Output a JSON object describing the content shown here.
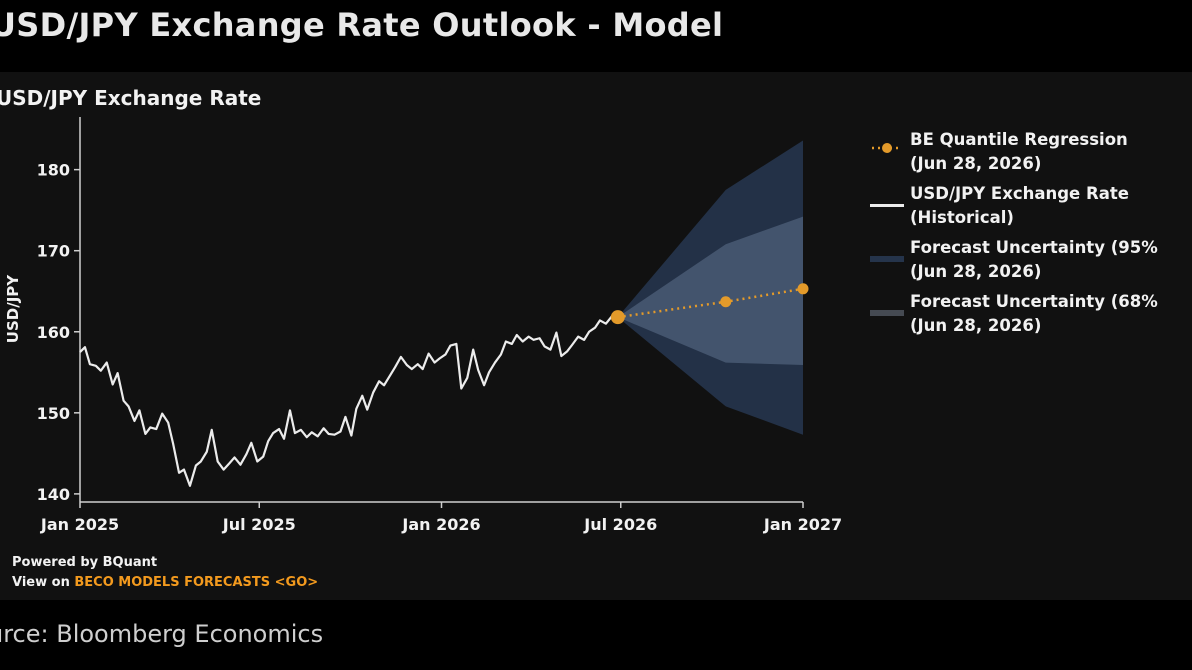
{
  "header": {
    "title": "USD/JPY Exchange Rate Outlook - Model"
  },
  "chart_data": {
    "type": "line",
    "title": "USD/JPY Exchange Rate",
    "ylabel": "USD/JPY",
    "xlabel": "",
    "ylim": [
      139,
      186
    ],
    "xlim": [
      "2025-01-01",
      "2027-01-01"
    ],
    "x_ticks": [
      "Jan 2025",
      "Jul 2025",
      "Jan 2026",
      "Jul 2026",
      "Jan 2027"
    ],
    "y_ticks": [
      140,
      150,
      160,
      170,
      180
    ],
    "series": [
      {
        "name": "USD/JPY Exchange Rate (Historical)",
        "color": "#ececec",
        "points": [
          [
            "2025-01-01",
            157.5
          ],
          [
            "2025-01-06",
            158.1
          ],
          [
            "2025-01-11",
            156.0
          ],
          [
            "2025-01-17",
            155.8
          ],
          [
            "2025-01-22",
            155.2
          ],
          [
            "2025-01-28",
            156.2
          ],
          [
            "2025-02-03",
            153.5
          ],
          [
            "2025-02-08",
            154.9
          ],
          [
            "2025-02-14",
            151.5
          ],
          [
            "2025-02-19",
            150.8
          ],
          [
            "2025-02-25",
            149.0
          ],
          [
            "2025-03-02",
            150.3
          ],
          [
            "2025-03-08",
            147.4
          ],
          [
            "2025-03-13",
            148.2
          ],
          [
            "2025-03-19",
            148.0
          ],
          [
            "2025-03-25",
            149.9
          ],
          [
            "2025-03-31",
            148.8
          ],
          [
            "2025-04-05",
            146.2
          ],
          [
            "2025-04-11",
            142.6
          ],
          [
            "2025-04-16",
            143.0
          ],
          [
            "2025-04-22",
            141.0
          ],
          [
            "2025-04-28",
            143.5
          ],
          [
            "2025-05-03",
            144.0
          ],
          [
            "2025-05-09",
            145.2
          ],
          [
            "2025-05-14",
            147.9
          ],
          [
            "2025-05-20",
            144.0
          ],
          [
            "2025-05-26",
            143.0
          ],
          [
            "2025-06-01",
            143.8
          ],
          [
            "2025-06-06",
            144.5
          ],
          [
            "2025-06-12",
            143.6
          ],
          [
            "2025-06-18",
            144.9
          ],
          [
            "2025-06-23",
            146.3
          ],
          [
            "2025-06-29",
            144.0
          ],
          [
            "2025-07-05",
            144.6
          ],
          [
            "2025-07-10",
            146.5
          ],
          [
            "2025-07-15",
            147.5
          ],
          [
            "2025-07-21",
            148.0
          ],
          [
            "2025-07-26",
            146.8
          ],
          [
            "2025-08-01",
            150.3
          ],
          [
            "2025-08-06",
            147.5
          ],
          [
            "2025-08-12",
            147.9
          ],
          [
            "2025-08-18",
            147.0
          ],
          [
            "2025-08-23",
            147.6
          ],
          [
            "2025-08-29",
            147.1
          ],
          [
            "2025-09-04",
            148.1
          ],
          [
            "2025-09-09",
            147.4
          ],
          [
            "2025-09-15",
            147.3
          ],
          [
            "2025-09-21",
            147.7
          ],
          [
            "2025-09-26",
            149.5
          ],
          [
            "2025-10-02",
            147.2
          ],
          [
            "2025-10-07",
            150.5
          ],
          [
            "2025-10-13",
            152.1
          ],
          [
            "2025-10-18",
            150.4
          ],
          [
            "2025-10-24",
            152.5
          ],
          [
            "2025-10-30",
            153.9
          ],
          [
            "2025-11-04",
            153.4
          ],
          [
            "2025-11-10",
            154.6
          ],
          [
            "2025-11-15",
            155.6
          ],
          [
            "2025-11-21",
            156.9
          ],
          [
            "2025-11-27",
            155.9
          ],
          [
            "2025-12-02",
            155.4
          ],
          [
            "2025-12-08",
            156.0
          ],
          [
            "2025-12-13",
            155.4
          ],
          [
            "2025-12-19",
            157.3
          ],
          [
            "2025-12-25",
            156.2
          ],
          [
            "2025-12-30",
            156.7
          ],
          [
            "2026-01-05",
            157.2
          ],
          [
            "2026-01-10",
            158.3
          ],
          [
            "2026-01-16",
            158.5
          ],
          [
            "2026-01-21",
            153.0
          ],
          [
            "2026-01-27",
            154.3
          ],
          [
            "2026-02-02",
            157.8
          ],
          [
            "2026-02-07",
            155.3
          ],
          [
            "2026-02-13",
            153.4
          ],
          [
            "2026-02-18",
            155.0
          ],
          [
            "2026-02-24",
            156.2
          ],
          [
            "2026-03-02",
            157.2
          ],
          [
            "2026-03-07",
            158.8
          ],
          [
            "2026-03-13",
            158.5
          ],
          [
            "2026-03-18",
            159.6
          ],
          [
            "2026-03-24",
            158.8
          ],
          [
            "2026-03-30",
            159.4
          ],
          [
            "2026-04-04",
            159.0
          ],
          [
            "2026-04-10",
            159.2
          ],
          [
            "2026-04-15",
            158.2
          ],
          [
            "2026-04-21",
            157.8
          ],
          [
            "2026-04-27",
            159.9
          ],
          [
            "2026-05-02",
            157.0
          ],
          [
            "2026-05-08",
            157.6
          ],
          [
            "2026-05-13",
            158.4
          ],
          [
            "2026-05-19",
            159.4
          ],
          [
            "2026-05-25",
            159.0
          ],
          [
            "2026-05-30",
            160.0
          ],
          [
            "2026-06-05",
            160.5
          ],
          [
            "2026-06-10",
            161.4
          ],
          [
            "2026-06-16",
            161.0
          ],
          [
            "2026-06-22",
            161.9
          ],
          [
            "2026-06-28",
            161.8
          ]
        ]
      },
      {
        "name": "BE Quantile Regression (Jun 28, 2026)",
        "color": "#e39a2a",
        "points": [
          [
            "2026-06-28",
            161.8
          ],
          [
            "2026-10-15",
            163.7
          ],
          [
            "2027-01-01",
            165.3
          ]
        ]
      }
    ],
    "bands": [
      {
        "name": "Forecast Uncertainty (95%) (Jun 28, 2026)",
        "color": "#25344b",
        "points": [
          [
            "2026-06-28",
            161.8,
            161.8
          ],
          [
            "2026-10-15",
            150.8,
            177.5
          ],
          [
            "2027-01-01",
            147.3,
            183.6
          ]
        ]
      },
      {
        "name": "Forecast Uncertainty (68%) (Jun 28, 2026)",
        "color": "#4f607a",
        "points": [
          [
            "2026-06-28",
            161.8,
            161.8
          ],
          [
            "2026-10-15",
            156.2,
            170.8
          ],
          [
            "2027-01-01",
            155.9,
            174.2
          ]
        ]
      }
    ]
  },
  "legend": [
    {
      "line1": "BE Quantile Regression",
      "line2": "(Jun 28, 2026)",
      "color": "#e39a2a"
    },
    {
      "line1": "USD/JPY Exchange Rate",
      "line2": "(Historical)",
      "color": "#ececec"
    },
    {
      "line1": "Forecast Uncertainty (95%",
      "line2": "(Jun 28, 2026)",
      "color": "#25344b"
    },
    {
      "line1": "Forecast Uncertainty (68%",
      "line2": "(Jun 28, 2026)",
      "color": "#454a52"
    }
  ],
  "footer": {
    "powered": "Powered by BQuant",
    "view_prefix": "View on ",
    "view_link": "BECO MODELS FORECASTS <GO>"
  },
  "source": "urce: Bloomberg Economics"
}
